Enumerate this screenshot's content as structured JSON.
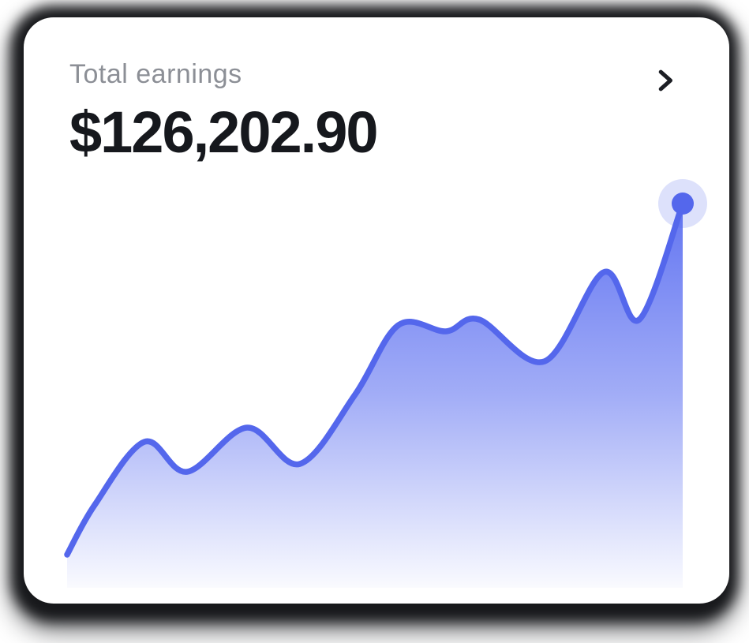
{
  "card": {
    "title": "Total earnings",
    "amount": "$126,202.90"
  },
  "icons": {
    "chevron_right": "chevron pointing right (details affordance)"
  },
  "colors": {
    "accent_line": "#5467EC",
    "endpoint_dot": "#5467EC",
    "endpoint_halo": "rgba(84,103,236,0.2)",
    "title_gray": "#8C8F96",
    "text_dark": "#16181D",
    "chevron_dark": "#1C1E24",
    "card_background": "#FFFFFF",
    "shadow_dark": "#17181B"
  },
  "chart_data": {
    "type": "area",
    "title": "",
    "xlabel": "",
    "ylabel": "",
    "axes_visible": false,
    "grid": false,
    "legend": false,
    "units": "relative (no axis ticks shown in chart)",
    "x": [
      0,
      35,
      98,
      152,
      228,
      295,
      365,
      420,
      480,
      522,
      605,
      680,
      725,
      780
    ],
    "values": [
      42,
      105,
      185,
      147,
      203,
      157,
      245,
      333,
      325,
      340,
      287,
      400,
      340,
      487
    ],
    "ylim": [
      0,
      520
    ],
    "xlim": [
      0,
      780
    ],
    "line_color": "#5467EC",
    "line_width": 7.5,
    "fill_gradient": [
      "rgba(86,106,240,0.92)",
      "rgba(86,106,240,0.55)",
      "rgba(86,106,240,0.03)"
    ],
    "endpoint_marker": {
      "dot_radius": 14,
      "halo_radius": 31,
      "dot_color": "#5467EC",
      "halo_color": "rgba(84,103,236,0.2)"
    }
  }
}
